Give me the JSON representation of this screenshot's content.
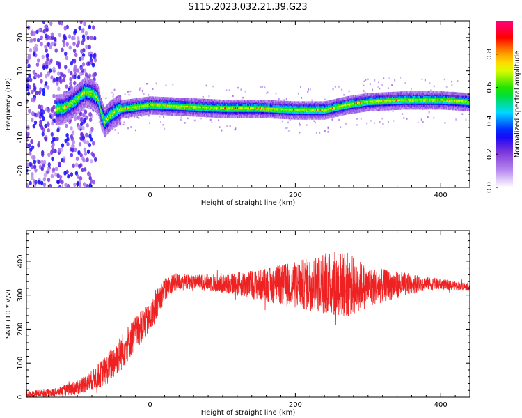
{
  "figure": {
    "title": "S115.2023.032.21.39.G23"
  },
  "chart_data": [
    {
      "type": "heatmap",
      "xlabel": "Height of straight line (km)",
      "ylabel": "Frequency (Hz)",
      "xlim": [
        -170,
        440
      ],
      "ylim": [
        -25,
        25
      ],
      "xticks": [
        0,
        200,
        400
      ],
      "yticks": [
        -20,
        -10,
        0,
        10,
        20
      ],
      "colorbar": {
        "label": "Normalized spectral amplitude",
        "range": [
          0,
          1
        ],
        "ticks": [
          0.0,
          0.2,
          0.4,
          0.6,
          0.8
        ],
        "colors": [
          "#ffffff",
          "#7b2fd8",
          "#0000ff",
          "#00d8ff",
          "#00e000",
          "#ffff00",
          "#ff8800",
          "#ff0000",
          "#ff0080"
        ]
      },
      "ridge": [
        {
          "x": -170,
          "y": -2
        },
        {
          "x": -120,
          "y": -1
        },
        {
          "x": -105,
          "y": 1
        },
        {
          "x": -90,
          "y": 4
        },
        {
          "x": -80,
          "y": 3.5
        },
        {
          "x": -72,
          "y": 2
        },
        {
          "x": -68,
          "y": -2
        },
        {
          "x": -63,
          "y": -5
        },
        {
          "x": -55,
          "y": -3
        },
        {
          "x": -45,
          "y": -1.5
        },
        {
          "x": -35,
          "y": -1
        },
        {
          "x": 0,
          "y": 0
        },
        {
          "x": 50,
          "y": -0.5
        },
        {
          "x": 100,
          "y": -1
        },
        {
          "x": 150,
          "y": -1
        },
        {
          "x": 200,
          "y": -1.5
        },
        {
          "x": 240,
          "y": -1.5
        },
        {
          "x": 270,
          "y": 0
        },
        {
          "x": 300,
          "y": 1
        },
        {
          "x": 350,
          "y": 1.5
        },
        {
          "x": 400,
          "y": 1.5
        },
        {
          "x": 440,
          "y": 1
        }
      ]
    },
    {
      "type": "line",
      "xlabel": "Height of straight line (km)",
      "ylabel": "SNR (10 * v/v)",
      "xlim": [
        -170,
        440
      ],
      "ylim": [
        0,
        490
      ],
      "xticks": [
        0,
        200,
        400
      ],
      "yticks": [
        0,
        100,
        200,
        300,
        400
      ],
      "series": [
        {
          "color": "#ee2222",
          "trend": [
            {
              "x": -170,
              "y": 8,
              "amp": 10
            },
            {
              "x": -130,
              "y": 14,
              "amp": 12
            },
            {
              "x": -100,
              "y": 28,
              "amp": 22
            },
            {
              "x": -80,
              "y": 50,
              "amp": 30
            },
            {
              "x": -60,
              "y": 80,
              "amp": 45
            },
            {
              "x": -40,
              "y": 130,
              "amp": 55
            },
            {
              "x": -20,
              "y": 190,
              "amp": 50
            },
            {
              "x": 0,
              "y": 230,
              "amp": 45
            },
            {
              "x": 15,
              "y": 300,
              "amp": 40
            },
            {
              "x": 30,
              "y": 335,
              "amp": 30
            },
            {
              "x": 60,
              "y": 340,
              "amp": 20
            },
            {
              "x": 100,
              "y": 335,
              "amp": 30
            },
            {
              "x": 150,
              "y": 330,
              "amp": 45
            },
            {
              "x": 200,
              "y": 330,
              "amp": 70
            },
            {
              "x": 240,
              "y": 335,
              "amp": 90
            },
            {
              "x": 270,
              "y": 330,
              "amp": 100
            },
            {
              "x": 300,
              "y": 325,
              "amp": 60
            },
            {
              "x": 340,
              "y": 330,
              "amp": 40
            },
            {
              "x": 380,
              "y": 335,
              "amp": 20
            },
            {
              "x": 440,
              "y": 325,
              "amp": 10
            }
          ]
        }
      ]
    }
  ]
}
